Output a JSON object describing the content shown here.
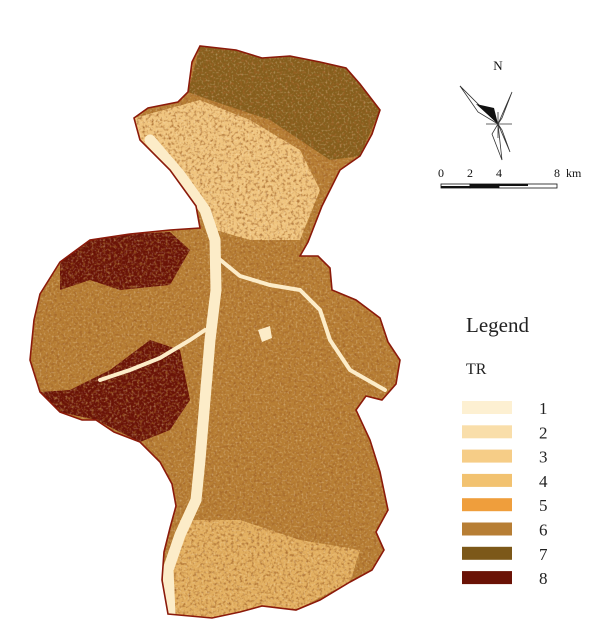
{
  "north_arrow": {
    "label": "N"
  },
  "scale_bar": {
    "ticks": [
      "0",
      "2",
      "4",
      "8"
    ],
    "unit": "km",
    "max_label": "8 km"
  },
  "legend": {
    "title": "Legend",
    "variable": "TR",
    "classes": [
      {
        "label": "1",
        "color": "#fdf0d2"
      },
      {
        "label": "2",
        "color": "#f9deaa"
      },
      {
        "label": "3",
        "color": "#f6cd87"
      },
      {
        "label": "4",
        "color": "#f2c270"
      },
      {
        "label": "5",
        "color": "#ef9e3c"
      },
      {
        "label": "6",
        "color": "#b77e34"
      },
      {
        "label": "7",
        "color": "#7c5819"
      },
      {
        "label": "8",
        "color": "#6a1206"
      }
    ]
  },
  "colors": {
    "boundary": "#8b1a0a",
    "river": "#fcecc8",
    "base": "#c8893f"
  }
}
